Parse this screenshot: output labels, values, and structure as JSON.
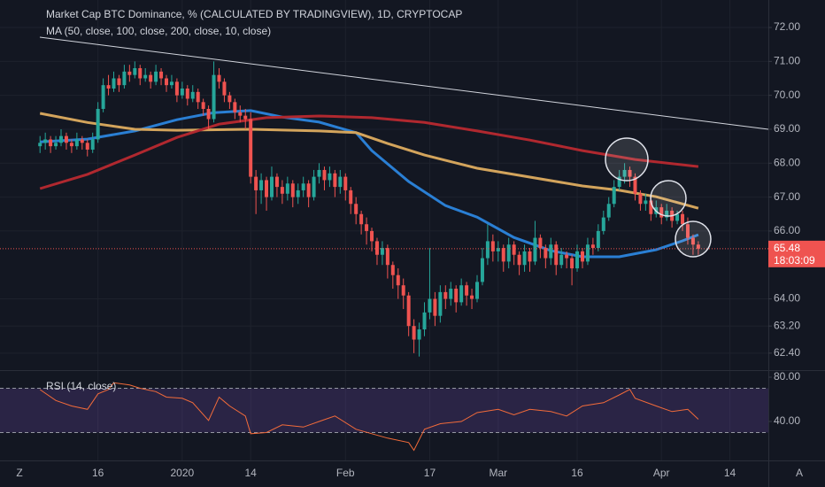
{
  "chart_data": [
    {
      "type": "candlestick",
      "title": "Market Cap BTC Dominance, % (CALCULATED BY TRADINGVIEW), 1D, CRYPTOCAP",
      "subtitle": "MA (50, close, 100, close, 200, close, 10, close)",
      "up_color": "#26a69a",
      "down_color": "#ef5350",
      "candles": [
        [
          68.5,
          68.8,
          68.3,
          68.6
        ],
        [
          68.6,
          68.9,
          68.4,
          68.7
        ],
        [
          68.7,
          68.8,
          68.3,
          68.5
        ],
        [
          68.5,
          68.8,
          68.4,
          68.6
        ],
        [
          68.6,
          69.0,
          68.5,
          68.8
        ],
        [
          68.8,
          68.9,
          68.4,
          68.6
        ],
        [
          68.6,
          68.7,
          68.3,
          68.5
        ],
        [
          68.5,
          68.9,
          68.4,
          68.7
        ],
        [
          68.7,
          68.8,
          68.4,
          68.6
        ],
        [
          68.6,
          68.7,
          68.2,
          68.4
        ],
        [
          68.4,
          68.9,
          68.3,
          68.7
        ],
        [
          68.7,
          69.8,
          68.6,
          69.6
        ],
        [
          69.6,
          70.5,
          69.5,
          70.3
        ],
        [
          70.3,
          70.6,
          70.0,
          70.2
        ],
        [
          70.2,
          70.7,
          70.1,
          70.5
        ],
        [
          70.5,
          70.6,
          70.1,
          70.3
        ],
        [
          70.3,
          70.9,
          70.2,
          70.7
        ],
        [
          70.7,
          70.9,
          70.4,
          70.6
        ],
        [
          70.6,
          71.0,
          70.5,
          70.8
        ],
        [
          70.8,
          70.9,
          70.3,
          70.5
        ],
        [
          70.5,
          70.8,
          70.4,
          70.6
        ],
        [
          70.6,
          70.7,
          70.2,
          70.4
        ],
        [
          70.4,
          70.9,
          70.3,
          70.7
        ],
        [
          70.7,
          70.8,
          70.3,
          70.5
        ],
        [
          70.5,
          70.6,
          70.1,
          70.3
        ],
        [
          70.3,
          70.6,
          70.2,
          70.4
        ],
        [
          70.4,
          70.5,
          69.8,
          70.0
        ],
        [
          70.0,
          70.4,
          69.9,
          70.2
        ],
        [
          70.2,
          70.3,
          69.7,
          69.9
        ],
        [
          69.9,
          70.3,
          69.8,
          70.1
        ],
        [
          70.1,
          70.2,
          69.6,
          69.8
        ],
        [
          69.8,
          69.9,
          69.4,
          69.6
        ],
        [
          69.6,
          69.7,
          69.0,
          69.3
        ],
        [
          69.3,
          71.0,
          69.2,
          70.6
        ],
        [
          70.6,
          70.8,
          70.2,
          70.4
        ],
        [
          70.4,
          70.5,
          69.8,
          70.0
        ],
        [
          70.0,
          70.1,
          69.6,
          69.8
        ],
        [
          69.8,
          69.9,
          69.3,
          69.5
        ],
        [
          69.5,
          69.7,
          69.2,
          69.4
        ],
        [
          69.4,
          69.6,
          69.0,
          69.3
        ],
        [
          69.3,
          69.5,
          67.4,
          67.6
        ],
        [
          67.6,
          67.8,
          66.5,
          67.2
        ],
        [
          67.2,
          67.7,
          66.8,
          67.5
        ],
        [
          67.5,
          67.6,
          66.6,
          67.0
        ],
        [
          67.0,
          67.9,
          66.9,
          67.6
        ],
        [
          67.6,
          67.7,
          67.0,
          67.3
        ],
        [
          67.3,
          67.5,
          66.8,
          67.1
        ],
        [
          67.1,
          67.6,
          66.9,
          67.4
        ],
        [
          67.4,
          67.5,
          66.7,
          67.0
        ],
        [
          67.0,
          67.4,
          66.8,
          67.2
        ],
        [
          67.2,
          67.6,
          67.0,
          67.4
        ],
        [
          67.4,
          67.5,
          66.7,
          67.0
        ],
        [
          67.0,
          67.8,
          66.9,
          67.6
        ],
        [
          67.6,
          68.0,
          67.4,
          67.8
        ],
        [
          67.8,
          67.9,
          67.2,
          67.5
        ],
        [
          67.5,
          67.9,
          67.3,
          67.7
        ],
        [
          67.7,
          67.8,
          67.0,
          67.3
        ],
        [
          67.3,
          67.8,
          67.1,
          67.6
        ],
        [
          67.6,
          67.7,
          66.9,
          67.2
        ],
        [
          67.2,
          67.3,
          66.5,
          66.8
        ],
        [
          66.8,
          67.0,
          66.2,
          66.5
        ],
        [
          66.5,
          66.6,
          65.9,
          66.2
        ],
        [
          66.2,
          66.4,
          65.6,
          66.0
        ],
        [
          66.0,
          66.1,
          65.4,
          65.7
        ],
        [
          65.7,
          65.8,
          65.0,
          65.3
        ],
        [
          65.3,
          65.7,
          65.0,
          65.5
        ],
        [
          65.5,
          65.6,
          64.6,
          65.0
        ],
        [
          65.0,
          65.1,
          64.3,
          64.7
        ],
        [
          64.7,
          64.9,
          64.0,
          64.4
        ],
        [
          64.4,
          64.6,
          63.7,
          64.1
        ],
        [
          64.1,
          64.2,
          62.9,
          63.2
        ],
        [
          63.2,
          63.4,
          62.4,
          62.8
        ],
        [
          62.8,
          63.3,
          62.3,
          63.1
        ],
        [
          63.1,
          63.9,
          62.9,
          63.6
        ],
        [
          63.6,
          65.5,
          63.4,
          64.0
        ],
        [
          64.0,
          64.2,
          63.2,
          63.5
        ],
        [
          63.5,
          64.4,
          63.3,
          64.2
        ],
        [
          64.2,
          64.4,
          63.7,
          64.0
        ],
        [
          64.0,
          64.5,
          63.8,
          64.3
        ],
        [
          64.3,
          64.4,
          63.6,
          63.9
        ],
        [
          63.9,
          64.6,
          63.8,
          64.4
        ],
        [
          64.4,
          64.5,
          63.8,
          64.1
        ],
        [
          64.1,
          64.3,
          63.7,
          64.0
        ],
        [
          64.0,
          64.7,
          63.9,
          64.5
        ],
        [
          64.5,
          65.5,
          64.4,
          65.2
        ],
        [
          65.2,
          66.2,
          65.0,
          65.7
        ],
        [
          65.7,
          65.9,
          65.1,
          65.4
        ],
        [
          65.4,
          65.7,
          65.1,
          65.5
        ],
        [
          65.5,
          65.6,
          64.8,
          65.1
        ],
        [
          65.1,
          65.8,
          64.9,
          65.6
        ],
        [
          65.6,
          65.7,
          65.0,
          65.3
        ],
        [
          65.3,
          65.4,
          64.7,
          65.0
        ],
        [
          65.0,
          65.6,
          64.8,
          65.4
        ],
        [
          65.4,
          65.5,
          64.8,
          65.1
        ],
        [
          65.1,
          66.3,
          65.0,
          65.8
        ],
        [
          65.8,
          65.9,
          65.2,
          65.5
        ],
        [
          65.5,
          65.6,
          64.9,
          65.2
        ],
        [
          65.2,
          65.8,
          65.0,
          65.6
        ],
        [
          65.6,
          65.7,
          64.7,
          65.0
        ],
        [
          65.0,
          65.5,
          64.9,
          65.3
        ],
        [
          65.3,
          65.4,
          64.9,
          65.2
        ],
        [
          65.2,
          65.3,
          64.4,
          64.9
        ],
        [
          64.9,
          65.6,
          64.8,
          65.4
        ],
        [
          65.4,
          65.5,
          64.9,
          65.1
        ],
        [
          65.1,
          65.8,
          65.0,
          65.6
        ],
        [
          65.6,
          65.8,
          65.3,
          65.5
        ],
        [
          65.5,
          66.2,
          65.4,
          66.0
        ],
        [
          66.0,
          66.6,
          65.9,
          66.4
        ],
        [
          66.4,
          67.0,
          66.3,
          66.8
        ],
        [
          66.8,
          67.5,
          66.7,
          67.3
        ],
        [
          67.3,
          67.8,
          67.2,
          67.6
        ],
        [
          67.6,
          68.0,
          67.4,
          67.8
        ],
        [
          67.8,
          67.9,
          67.3,
          67.6
        ],
        [
          67.6,
          67.7,
          66.9,
          67.1
        ],
        [
          67.1,
          67.2,
          66.6,
          66.8
        ],
        [
          66.8,
          67.1,
          66.6,
          66.9
        ],
        [
          66.9,
          67.0,
          66.3,
          66.5
        ],
        [
          66.5,
          66.9,
          66.4,
          66.7
        ],
        [
          66.7,
          66.8,
          66.2,
          66.4
        ],
        [
          66.4,
          66.8,
          66.3,
          66.6
        ],
        [
          66.6,
          66.7,
          66.1,
          66.3
        ],
        [
          66.3,
          66.6,
          66.2,
          66.5
        ],
        [
          66.5,
          66.6,
          66.0,
          66.2
        ],
        [
          66.2,
          66.4,
          65.6,
          65.8
        ],
        [
          65.8,
          65.9,
          65.3,
          65.6
        ],
        [
          65.6,
          65.7,
          65.3,
          65.48
        ]
      ],
      "series": [
        {
          "color": "#2a7fd4",
          "x": [
            0,
            9,
            18,
            26,
            33,
            40,
            46,
            53,
            60,
            63,
            70,
            77,
            83,
            90,
            97,
            103,
            110,
            117,
            122,
            125
          ],
          "values": [
            68.63,
            68.71,
            68.95,
            69.28,
            69.49,
            69.55,
            69.36,
            69.21,
            68.9,
            68.37,
            67.46,
            66.75,
            66.41,
            65.81,
            65.42,
            65.24,
            65.24,
            65.45,
            65.71,
            65.89
          ]
        },
        {
          "color": "#d3a45c",
          "x": [
            0,
            9,
            18,
            26,
            40,
            53,
            60,
            66,
            73,
            83,
            93,
            103,
            110,
            117,
            125
          ],
          "values": [
            69.47,
            69.2,
            69.0,
            68.97,
            69.0,
            68.95,
            68.9,
            68.58,
            68.24,
            67.85,
            67.59,
            67.33,
            67.2,
            67.01,
            66.67
          ]
        },
        {
          "color": "#b0282f",
          "x": [
            0,
            9,
            18,
            26,
            34,
            43,
            53,
            63,
            73,
            83,
            93,
            103,
            113,
            125
          ],
          "values": [
            67.25,
            67.67,
            68.24,
            68.76,
            69.15,
            69.34,
            69.39,
            69.34,
            69.2,
            68.95,
            68.68,
            68.37,
            68.11,
            67.9
          ]
        }
      ],
      "last_price": 65.48,
      "countdown": "18:03:09",
      "last_color": "#ef5350",
      "xlim": [
        -7.6,
        138.3
      ],
      "xticks": [
        {
          "value": 11,
          "label": "16"
        },
        {
          "value": 27,
          "label": "2020"
        },
        {
          "value": 40,
          "label": "14"
        },
        {
          "value": 58,
          "label": "Feb"
        },
        {
          "value": 74,
          "label": "17"
        },
        {
          "value": 87,
          "label": "Mar"
        },
        {
          "value": 102,
          "label": "16"
        },
        {
          "value": 118,
          "label": "Apr"
        },
        {
          "value": 131,
          "label": "14"
        }
      ],
      "ylim": [
        61.9,
        72.81
      ],
      "yticks": [
        {
          "value": 72,
          "label": "72.00"
        },
        {
          "value": 71,
          "label": "71.00"
        },
        {
          "value": 70,
          "label": "70.00"
        },
        {
          "value": 69,
          "label": "69.00"
        },
        {
          "value": 68,
          "label": "68.00"
        },
        {
          "value": 67,
          "label": "67.00"
        },
        {
          "value": 66,
          "label": "66.00"
        },
        {
          "value": 64,
          "label": "64.00"
        },
        {
          "value": 63.2,
          "label": "63.20"
        },
        {
          "value": 62.4,
          "label": "62.40"
        }
      ],
      "grid": true
    },
    {
      "type": "line",
      "title": "RSI (14, close)",
      "series": [
        {
          "color": "#f26b3a",
          "x": [
            0,
            3,
            6,
            9,
            11,
            13,
            14,
            17,
            19,
            22,
            24,
            27,
            29,
            32,
            34,
            36,
            39,
            40,
            43,
            46,
            50,
            53,
            56,
            60,
            63,
            66,
            70,
            71,
            73,
            76,
            80,
            83,
            87,
            90,
            93,
            97,
            100,
            103,
            107,
            110,
            112,
            113,
            117,
            120,
            123,
            125
          ],
          "values": [
            68.8,
            59,
            54,
            51,
            65,
            69,
            75,
            73,
            70,
            67,
            62,
            61,
            57,
            41,
            62,
            54,
            45,
            29,
            30,
            37,
            35,
            40,
            45,
            33,
            29,
            25,
            21,
            14,
            33,
            38,
            40,
            48,
            51,
            46,
            51,
            49,
            45,
            54,
            57,
            64,
            69,
            61,
            54,
            49,
            51,
            42
          ]
        }
      ],
      "band": [
        30,
        70
      ],
      "band_color": "rgba(126,87,194,0.22)",
      "xlim": [
        -7.6,
        138.3
      ],
      "ylim": [
        4.8,
        86.4
      ],
      "yticks": [
        {
          "value": 80,
          "label": "80.00"
        },
        {
          "value": 40,
          "label": "40.00"
        }
      ]
    }
  ],
  "ui": {
    "left_button": "Z",
    "right_button": "A"
  }
}
